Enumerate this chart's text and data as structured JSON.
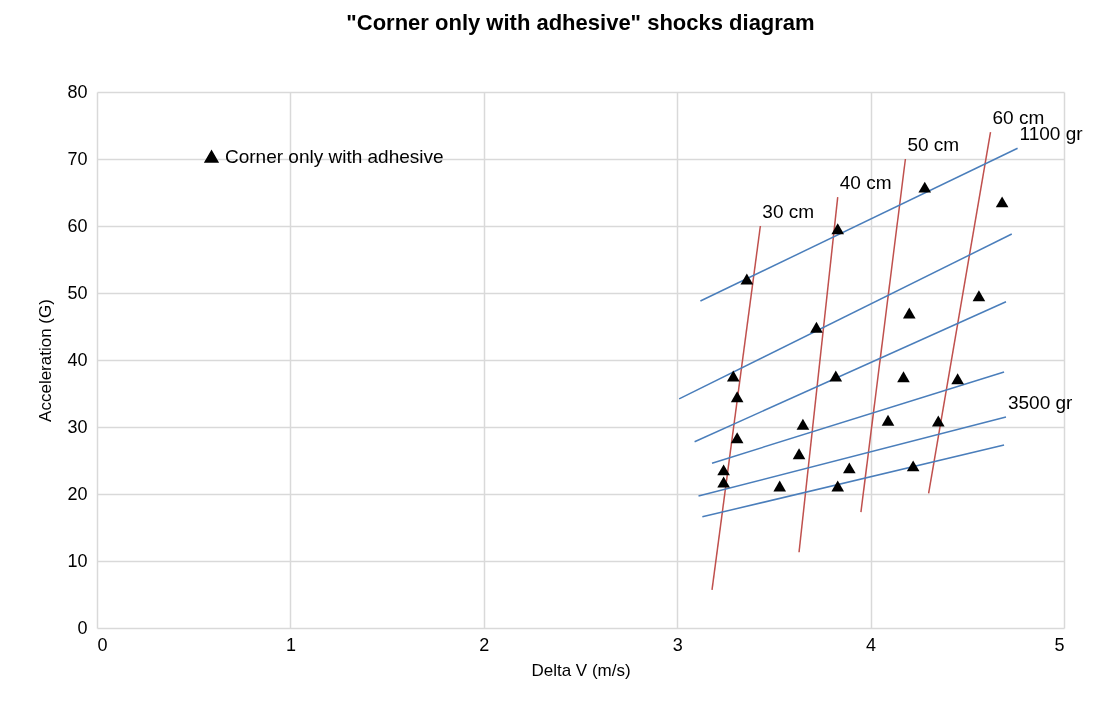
{
  "chart_data": {
    "type": "scatter",
    "title": "\"Corner only with adhesive\" shocks diagram",
    "xlabel": "Delta V (m/s)",
    "ylabel": "Acceleration (G)",
    "xlim": [
      0,
      5
    ],
    "xticks": [
      0,
      1,
      2,
      3,
      4,
      5
    ],
    "ylim": [
      0,
      80
    ],
    "yticks": [
      0,
      10,
      20,
      30,
      40,
      50,
      60,
      70,
      80
    ],
    "grid": true,
    "legend": "top left",
    "series": [
      {
        "name": "Corner only with adhesive",
        "marker": "triangle",
        "color": "#000000",
        "x": [
          3.36,
          3.83,
          4.28,
          4.68,
          3.72,
          4.2,
          4.56,
          3.29,
          3.82,
          4.17,
          4.45,
          3.31,
          3.65,
          4.09,
          4.35,
          3.31,
          3.63,
          3.24,
          3.89,
          4.22,
          3.24,
          3.53,
          3.83
        ],
        "values": [
          52.1,
          59.6,
          65.8,
          63.6,
          44.9,
          47.0,
          49.6,
          37.6,
          37.6,
          37.5,
          37.2,
          34.5,
          30.4,
          31.0,
          30.9,
          28.4,
          26.0,
          23.6,
          23.9,
          24.2,
          21.8,
          21.2,
          21.2
        ]
      },
      {
        "name": "30 cm",
        "type": "line",
        "color": "#c0504d",
        "x": [
          3.18,
          3.43
        ],
        "values": [
          5.7,
          60.0
        ]
      },
      {
        "name": "40 cm",
        "type": "line",
        "color": "#c0504d",
        "x": [
          3.63,
          3.83
        ],
        "values": [
          11.3,
          64.3
        ]
      },
      {
        "name": "50 cm",
        "type": "line",
        "color": "#c0504d",
        "x": [
          3.95,
          4.18
        ],
        "values": [
          17.3,
          70.0
        ]
      },
      {
        "name": "60 cm",
        "type": "line",
        "color": "#c0504d",
        "x": [
          4.3,
          4.62
        ],
        "values": [
          20.1,
          74.0
        ]
      },
      {
        "name": "1100 gr",
        "type": "line",
        "color": "#4a7ebb",
        "x": [
          3.12,
          4.76
        ],
        "values": [
          48.8,
          71.6
        ]
      },
      {
        "type": "line",
        "color": "#4a7ebb",
        "x": [
          3.01,
          4.73
        ],
        "values": [
          34.2,
          58.8
        ]
      },
      {
        "type": "line",
        "color": "#4a7ebb",
        "x": [
          3.09,
          4.7
        ],
        "values": [
          27.8,
          48.7
        ]
      },
      {
        "type": "line",
        "color": "#4a7ebb",
        "x": [
          3.18,
          4.69
        ],
        "values": [
          24.6,
          38.2
        ]
      },
      {
        "name": "3500 gr",
        "type": "line",
        "color": "#4a7ebb",
        "x": [
          3.11,
          4.7
        ],
        "values": [
          19.7,
          31.5
        ]
      },
      {
        "type": "line",
        "color": "#4a7ebb",
        "x": [
          3.13,
          4.69
        ],
        "values": [
          16.6,
          27.3
        ]
      }
    ]
  }
}
